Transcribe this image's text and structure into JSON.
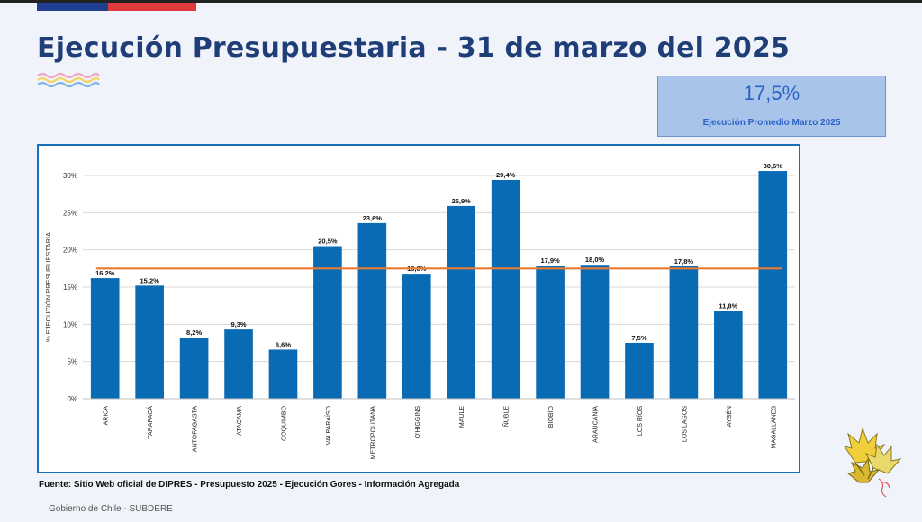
{
  "header": {
    "title": "Ejecución Presupuestaria - 31 de marzo del 2025"
  },
  "kpi": {
    "value": "17,5%",
    "label": "Ejecución Promedio Marzo 2025"
  },
  "colors": {
    "bar": "#0a6bb5",
    "average_line": "#e97a2e",
    "title": "#1f3e78",
    "flag_blue": "#1e3f8f",
    "flag_red": "#e0393e"
  },
  "chart_data": {
    "type": "bar",
    "ylabel": "% EJECUCIÓN PRESUPUESTARIA",
    "xlabel": "",
    "ylim": [
      0,
      30
    ],
    "yticks": [
      "0%",
      "5%",
      "10%",
      "15%",
      "20%",
      "25%",
      "30%"
    ],
    "grid": true,
    "categories": [
      "ARICA",
      "TARAPACÁ",
      "ANTOFAGASTA",
      "ATACAMA",
      "COQUIMBO",
      "VALPARAÍSO",
      "METROPOLITANA",
      "O'HIGGINS",
      "MAULE",
      "ÑUBLE",
      "BIOBÍO",
      "ARAUCANÍA",
      "LOS RÍOS",
      "LOS LAGOS",
      "AYSÉN",
      "MAGALLANES"
    ],
    "values": [
      16.2,
      15.2,
      8.2,
      9.3,
      6.6,
      20.5,
      23.6,
      16.8,
      25.9,
      29.4,
      17.9,
      18.0,
      7.5,
      17.8,
      11.8,
      30.6
    ],
    "value_labels": [
      "16,2%",
      "15,2%",
      "8,2%",
      "9,3%",
      "6,6%",
      "20,5%",
      "23,6%",
      "16,8%",
      "25,9%",
      "29,4%",
      "17,9%",
      "18,0%",
      "7,5%",
      "17,8%",
      "11,8%",
      "30,6%"
    ],
    "reference_line": 17.5
  },
  "source": "Fuente: Sitio Web oficial de DIPRES - Presupuesto 2025 - Ejecución Gores - Información Agregada",
  "footer": "Gobierno de Chile - SUBDERE"
}
